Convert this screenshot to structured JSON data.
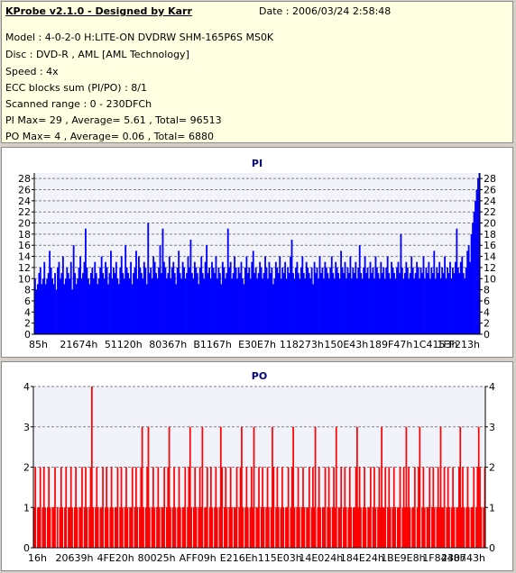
{
  "header": {
    "title": "KProbe v2.1.0 - Designed by Karr",
    "date": "Date : 2006/03/24 2:58:48",
    "lines": [
      "Model : 4-0-2-0 H:LITE-ON DVDRW SHM-165P6S MS0K",
      "Disc : DVD-R , AML [AML Technology]",
      "Speed : 4x",
      "ECC blocks sum (PI/PO) : 8/1",
      "Scanned range : 0 - 230DFCh",
      "PI Max= 29 , Average= 5.61 , Total= 96513",
      "PO Max= 4 , Average= 0.06 , Total= 6880"
    ]
  },
  "colors": {
    "series": "#0000ff",
    "po_series": "#ff0000",
    "background": "#ffffff",
    "grid": "#808080",
    "panel": "#d4d0c8",
    "info": "#ffffe1",
    "title": "#000080"
  },
  "chart_data": [
    {
      "type": "bar",
      "title": "PI",
      "ylim": [
        0,
        29
      ],
      "yticks": [
        0,
        2,
        4,
        6,
        8,
        10,
        12,
        14,
        16,
        18,
        20,
        22,
        24,
        26,
        28
      ],
      "xtick_labels": [
        "85h",
        "21674h",
        "51120h",
        "80367h",
        "B1167h",
        "E30E7h",
        "118273h",
        "150E43h",
        "189F47h",
        "1C4153h",
        "1FF213h"
      ],
      "grid": "horizontal dashed",
      "series": [
        {
          "color": "#0000ff",
          "values": [
            10,
            8,
            9,
            11,
            12,
            9,
            10,
            13,
            9,
            10,
            11,
            15,
            12,
            10,
            9,
            11,
            8,
            12,
            13,
            10,
            11,
            14,
            9,
            10,
            12,
            11,
            10,
            13,
            8,
            16,
            11,
            9,
            10,
            12,
            14,
            10,
            11,
            13,
            19,
            12,
            10,
            9,
            11,
            12,
            10,
            13,
            11,
            9,
            10,
            12,
            14,
            11,
            10,
            13,
            12,
            9,
            11,
            15,
            10,
            12,
            11,
            13,
            10,
            9,
            12,
            14,
            11,
            10,
            16,
            12,
            11,
            10,
            13,
            9,
            11,
            12,
            15,
            10,
            14,
            12,
            11,
            10,
            13,
            12,
            9,
            20,
            11,
            12,
            10,
            14,
            13,
            11,
            10,
            12,
            16,
            11,
            19,
            13,
            12,
            10,
            11,
            14,
            10,
            12,
            13,
            11,
            9,
            12,
            15,
            11,
            10,
            13,
            12,
            10,
            11,
            14,
            12,
            17,
            11,
            10,
            13,
            12,
            11,
            9,
            12,
            14,
            11,
            10,
            13,
            16,
            11,
            12,
            10,
            13,
            12,
            11,
            14,
            10,
            12,
            11,
            9,
            13,
            12,
            10,
            11,
            19,
            12,
            13,
            10,
            11,
            14,
            12,
            10,
            12,
            11,
            13,
            10,
            9,
            12,
            14,
            11,
            12,
            10,
            13,
            15,
            11,
            12,
            10,
            11,
            13,
            12,
            10,
            11,
            14,
            12,
            10,
            13,
            11,
            12,
            9,
            10,
            13,
            12,
            11,
            14,
            10,
            12,
            11,
            13,
            10,
            12,
            11,
            14,
            17,
            11,
            10,
            12,
            13,
            11,
            10,
            12,
            14,
            11,
            10,
            13,
            12,
            11,
            10,
            12,
            9,
            13,
            11,
            12,
            10,
            14,
            11,
            12,
            10,
            13,
            12,
            11,
            10,
            12,
            14,
            11,
            10,
            13,
            12,
            11,
            10,
            15,
            12,
            11,
            13,
            10,
            12,
            11,
            14,
            10,
            12,
            11,
            13,
            10,
            12,
            16,
            11,
            10,
            12,
            14,
            11,
            12,
            10,
            13,
            11,
            12,
            10,
            14,
            12,
            11,
            10,
            13,
            11,
            12,
            10,
            12,
            14,
            11,
            10,
            13,
            12,
            11,
            10,
            12,
            13,
            11,
            18,
            12,
            10,
            11,
            13,
            12,
            10,
            11,
            14,
            12,
            10,
            11,
            13,
            12,
            10,
            12,
            11,
            14,
            10,
            12,
            11,
            13,
            10,
            12,
            11,
            15,
            10,
            12,
            11,
            13,
            10,
            12,
            11,
            14,
            10,
            12,
            11,
            13,
            10,
            12,
            11,
            13,
            19,
            12,
            11,
            13,
            14,
            11,
            10,
            12,
            15,
            16,
            13,
            18,
            20,
            22,
            24,
            26,
            28,
            29
          ]
        }
      ]
    },
    {
      "type": "bar",
      "title": "PO",
      "ylim": [
        0,
        4
      ],
      "yticks": [
        0,
        1,
        2,
        3,
        4
      ],
      "xtick_labels": [
        "16h",
        "20639h",
        "4FE20h",
        "80025h",
        "AFF09h",
        "E216Eh",
        "115E03h",
        "14E024h",
        "184E24h",
        "1BE9E8h",
        "1F8448h",
        "230743h"
      ],
      "grid": "horizontal dashed",
      "series": [
        {
          "color": "#ff0000",
          "values": [
            1,
            2,
            0,
            1,
            1,
            2,
            0,
            1,
            2,
            1,
            0,
            1,
            2,
            1,
            0,
            1,
            1,
            2,
            0,
            1,
            0,
            1,
            2,
            1,
            0,
            1,
            2,
            0,
            1,
            1,
            2,
            1,
            0,
            1,
            2,
            1,
            0,
            1,
            1,
            2,
            0,
            1,
            2,
            1,
            0,
            1,
            2,
            4,
            1,
            0,
            1,
            2,
            1,
            0,
            1,
            1,
            2,
            0,
            1,
            2,
            1,
            0,
            1,
            2,
            1,
            0,
            1,
            1,
            2,
            0,
            1,
            2,
            1,
            0,
            1,
            2,
            1,
            0,
            1,
            1,
            2,
            0,
            1,
            2,
            1,
            0,
            1,
            2,
            3,
            1,
            0,
            1,
            2,
            3,
            1,
            0,
            1,
            2,
            1,
            0,
            1,
            2,
            1,
            0,
            1,
            1,
            2,
            0,
            1,
            2,
            3,
            1,
            0,
            1,
            2,
            1,
            0,
            1,
            2,
            1,
            0,
            1,
            1,
            2,
            0,
            1,
            2,
            3,
            1,
            0,
            1,
            2,
            1,
            0,
            1,
            2,
            1,
            3,
            0,
            1,
            1,
            2,
            0,
            1,
            2,
            1,
            0,
            1,
            2,
            1,
            0,
            1,
            3,
            2,
            0,
            1,
            2,
            1,
            0,
            1,
            2,
            1,
            0,
            1,
            1,
            2,
            0,
            1,
            2,
            3,
            1,
            0,
            1,
            2,
            1,
            0,
            1,
            2,
            1,
            3,
            0,
            1,
            1,
            2,
            0,
            1,
            2,
            1,
            0,
            1,
            2,
            1,
            0,
            1,
            3,
            2,
            0,
            1,
            2,
            1,
            0,
            1,
            2,
            1,
            0,
            1,
            1,
            2,
            0,
            1,
            2,
            3,
            1,
            0,
            1,
            2,
            1,
            0,
            1,
            2,
            1,
            0,
            1,
            1,
            2,
            0,
            1,
            2,
            1,
            3,
            0,
            1,
            2,
            1,
            0,
            1,
            1,
            2,
            0,
            1,
            2,
            1,
            0,
            1,
            2,
            1,
            3,
            0,
            1,
            1,
            2,
            0,
            1,
            2,
            1,
            0,
            1,
            2,
            1,
            0,
            1,
            1,
            2,
            3,
            1,
            2,
            1,
            0,
            1,
            2,
            1,
            0,
            1,
            1,
            2,
            0,
            1,
            2,
            1,
            0,
            1,
            2,
            1,
            3,
            1,
            1,
            2,
            0,
            1,
            2,
            1,
            0,
            1,
            2,
            1,
            0,
            1,
            1,
            2,
            0,
            1,
            2,
            1,
            3,
            1,
            2,
            1,
            0,
            1,
            1,
            2,
            0,
            1,
            2,
            3,
            0,
            1,
            2,
            1,
            0,
            1,
            1,
            2,
            0,
            1,
            2,
            1,
            0,
            1,
            2,
            1,
            3,
            1,
            1,
            2,
            0,
            1,
            2,
            1,
            0,
            1,
            2,
            1,
            0,
            1,
            1,
            2,
            3,
            1,
            2,
            1,
            0,
            1,
            2,
            1,
            0,
            1,
            1,
            2,
            0,
            1,
            2,
            3,
            2,
            1,
            0,
            1,
            2
          ]
        }
      ]
    }
  ]
}
